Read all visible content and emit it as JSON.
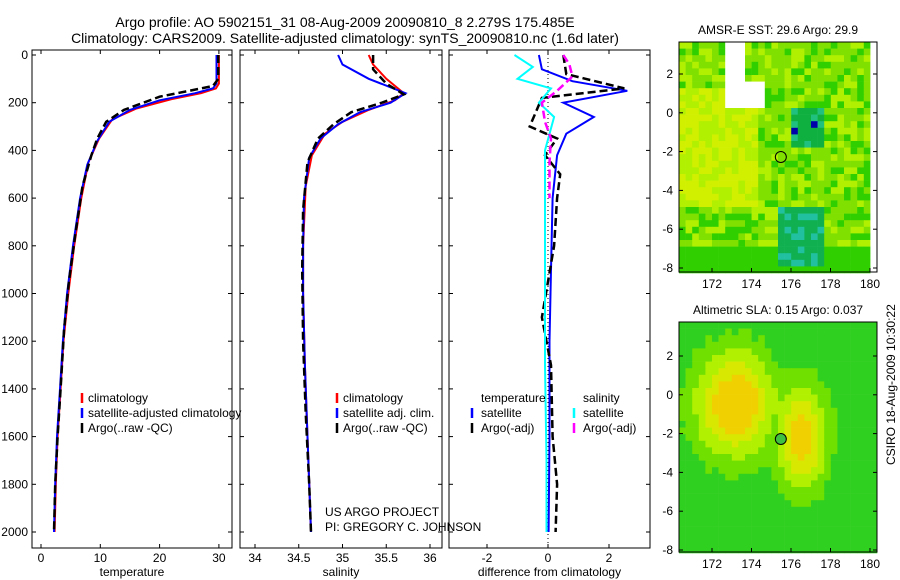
{
  "title_line1": "Argo profile: AO 5902151_31 08-Aug-2009 20090810_8 2.279S 175.485E",
  "title_line2": "Climatology: CARS2009. Satellite-adjusted climatology: synTS_20090810.nc (1.6d later)",
  "side_stamp": "CSIRO 18-Aug-2009 10:30:22",
  "credit": {
    "line1": "US ARGO PROJECT",
    "line2": "PI: GREGORY C. JOHNSON"
  },
  "colors": {
    "climatology": "#ff0000",
    "satellite": "#0000ff",
    "argo": "#000000",
    "sal_satellite": "#00ffff",
    "sal_argo": "#ff00ff"
  },
  "chart_data": [
    {
      "type": "line",
      "id": "temp",
      "xlabel": "temperature",
      "ylabel": "",
      "xlim": [
        -2,
        32
      ],
      "ylim": [
        0,
        2050
      ],
      "y_reversed": true,
      "xticks": [
        0,
        10,
        20,
        30
      ],
      "yticks": [
        0,
        200,
        400,
        600,
        800,
        1000,
        1200,
        1400,
        1600,
        1800,
        2000
      ],
      "legend": [
        "climatology",
        "satellite-adjusted climatology",
        "Argo(..raw -QC)"
      ],
      "series": [
        {
          "name": "climatology",
          "color": "#ff0000",
          "dash": false,
          "points": [
            [
              30,
              0
            ],
            [
              30,
              120
            ],
            [
              29.5,
              140
            ],
            [
              27,
              160
            ],
            [
              22,
              185
            ],
            [
              16,
              225
            ],
            [
              12,
              270
            ],
            [
              9.8,
              350
            ],
            [
              8,
              450
            ],
            [
              6.8,
              600
            ],
            [
              5.6,
              800
            ],
            [
              4.6,
              1000
            ],
            [
              3.8,
              1200
            ],
            [
              3.3,
              1400
            ],
            [
              2.8,
              1600
            ],
            [
              2.5,
              1800
            ],
            [
              2.3,
              2000
            ]
          ]
        },
        {
          "name": "satellite-adjusted climatology",
          "color": "#0000ff",
          "dash": false,
          "points": [
            [
              29.6,
              0
            ],
            [
              29.6,
              120
            ],
            [
              29,
              140
            ],
            [
              26,
              160
            ],
            [
              20,
              190
            ],
            [
              15,
              230
            ],
            [
              11.5,
              280
            ],
            [
              9.5,
              360
            ],
            [
              7.8,
              460
            ],
            [
              6.6,
              600
            ],
            [
              5.4,
              800
            ],
            [
              4.4,
              1000
            ],
            [
              3.7,
              1200
            ],
            [
              3.2,
              1400
            ],
            [
              2.7,
              1600
            ],
            [
              2.4,
              1800
            ],
            [
              2.2,
              2000
            ]
          ]
        },
        {
          "name": "Argo(..raw -QC)",
          "color": "#000000",
          "dash": true,
          "points": [
            [
              29.9,
              0
            ],
            [
              29.9,
              100
            ],
            [
              29,
              130
            ],
            [
              25,
              150
            ],
            [
              20,
              175
            ],
            [
              14,
              230
            ],
            [
              11,
              280
            ],
            [
              9.5,
              350
            ],
            [
              8.5,
              420
            ],
            [
              7,
              550
            ],
            [
              5.8,
              750
            ],
            [
              4.7,
              950
            ],
            [
              3.9,
              1150
            ],
            [
              3.3,
              1400
            ],
            [
              2.8,
              1600
            ],
            [
              2.4,
              1800
            ],
            [
              2.2,
              2000
            ]
          ]
        }
      ]
    },
    {
      "type": "line",
      "id": "sal",
      "xlabel": "salinity",
      "xlim": [
        33.8,
        36.15
      ],
      "ylim": [
        0,
        2050
      ],
      "y_reversed": true,
      "xticks": [
        34,
        34.5,
        35,
        35.5,
        36
      ],
      "legend": [
        "climatology",
        "satellite adj. clim.",
        "Argo(..raw -QC)"
      ],
      "series": [
        {
          "name": "climatology",
          "color": "#ff0000",
          "dash": false,
          "points": [
            [
              35.3,
              0
            ],
            [
              35.35,
              40
            ],
            [
              35.5,
              100
            ],
            [
              35.7,
              160
            ],
            [
              35.6,
              190
            ],
            [
              35.3,
              230
            ],
            [
              35,
              280
            ],
            [
              34.8,
              330
            ],
            [
              34.65,
              420
            ],
            [
              34.58,
              550
            ],
            [
              34.55,
              800
            ],
            [
              34.55,
              1000
            ],
            [
              34.57,
              1300
            ],
            [
              34.6,
              1600
            ],
            [
              34.64,
              2000
            ]
          ]
        },
        {
          "name": "satellite adj. clim.",
          "color": "#0000ff",
          "dash": false,
          "points": [
            [
              34.95,
              0
            ],
            [
              35.0,
              40
            ],
            [
              35.3,
              100
            ],
            [
              35.72,
              160
            ],
            [
              35.55,
              200
            ],
            [
              35.2,
              240
            ],
            [
              34.95,
              290
            ],
            [
              34.75,
              350
            ],
            [
              34.62,
              430
            ],
            [
              34.56,
              600
            ],
            [
              34.55,
              800
            ],
            [
              34.55,
              1000
            ],
            [
              34.57,
              1300
            ],
            [
              34.6,
              1600
            ],
            [
              34.64,
              2000
            ]
          ]
        },
        {
          "name": "Argo(..raw -QC)",
          "color": "#000000",
          "dash": true,
          "points": [
            [
              35.35,
              0
            ],
            [
              35.35,
              60
            ],
            [
              35.5,
              120
            ],
            [
              35.7,
              165
            ],
            [
              35.45,
              200
            ],
            [
              35.1,
              240
            ],
            [
              34.9,
              290
            ],
            [
              34.72,
              350
            ],
            [
              34.6,
              450
            ],
            [
              34.55,
              650
            ],
            [
              34.54,
              900
            ],
            [
              34.55,
              1200
            ],
            [
              34.58,
              1500
            ],
            [
              34.62,
              1800
            ],
            [
              34.64,
              2000
            ]
          ]
        }
      ]
    },
    {
      "type": "line",
      "id": "diff",
      "xlabel": "difference from climatology",
      "xlim": [
        -3.1,
        3.3
      ],
      "ylim": [
        0,
        2050
      ],
      "y_reversed": true,
      "xticks": [
        -2,
        0,
        2
      ],
      "legend_temperature": {
        "title": "temperature",
        "items": [
          "satellite",
          "Argo(-adj)"
        ]
      },
      "legend_salinity": {
        "title": "salinity",
        "items": [
          "satellite",
          "Argo(-adj)"
        ]
      },
      "series": [
        {
          "name": "temperature satellite",
          "color": "#0000ff",
          "dash": false,
          "points": [
            [
              -0.3,
              0
            ],
            [
              -0.2,
              60
            ],
            [
              0.8,
              110
            ],
            [
              2.6,
              150
            ],
            [
              0.5,
              200
            ],
            [
              1.5,
              260
            ],
            [
              0.6,
              330
            ],
            [
              0.3,
              420
            ],
            [
              0.15,
              600
            ],
            [
              0.1,
              900
            ],
            [
              0.05,
              1200
            ],
            [
              0.05,
              1600
            ],
            [
              0.02,
              2000
            ]
          ]
        },
        {
          "name": "temperature Argo(-adj)",
          "color": "#000000",
          "dash": true,
          "points": [
            [
              0.5,
              0
            ],
            [
              0.6,
              80
            ],
            [
              2.5,
              140
            ],
            [
              -0.2,
              180
            ],
            [
              -0.6,
              300
            ],
            [
              0.3,
              350
            ],
            [
              -0.1,
              420
            ],
            [
              0.4,
              500
            ],
            [
              0.3,
              600
            ],
            [
              0.2,
              800
            ],
            [
              -0.2,
              1100
            ],
            [
              0.1,
              1300
            ],
            [
              0.15,
              1600
            ],
            [
              0.3,
              1800
            ],
            [
              0.25,
              2000
            ]
          ]
        },
        {
          "name": "salinity satellite",
          "color": "#00ffff",
          "dash": false,
          "points": [
            [
              -1.1,
              0
            ],
            [
              -0.5,
              50
            ],
            [
              -1,
              100
            ],
            [
              0.1,
              140
            ],
            [
              -0.3,
              200
            ],
            [
              0.2,
              260
            ],
            [
              -0.1,
              400
            ],
            [
              -0.1,
              700
            ],
            [
              -0.1,
              1000
            ],
            [
              -0.1,
              1300
            ],
            [
              -0.05,
              1700
            ],
            [
              -0.05,
              2000
            ]
          ]
        },
        {
          "name": "salinity Argo(-adj)",
          "color": "#ff00ff",
          "dash": true,
          "points": [
            [
              0.5,
              0
            ],
            [
              0.7,
              40
            ],
            [
              0.8,
              90
            ],
            [
              0.3,
              150
            ],
            [
              -0.2,
              200
            ],
            [
              -0.1,
              280
            ],
            [
              0.1,
              350
            ],
            [
              0.05,
              450
            ],
            [
              0.05,
              600
            ]
          ]
        }
      ]
    },
    {
      "type": "heatmap",
      "id": "sst",
      "title": "AMSR-E SST: 29.6 Argo: 29.9",
      "xlim": [
        170.4,
        180.6
      ],
      "ylim": [
        -8.3,
        3.8
      ],
      "xticks": [
        172,
        174,
        176,
        178,
        180
      ],
      "yticks": [
        2,
        0,
        -2,
        -4,
        -6,
        -8
      ],
      "profile_location": [
        175.485,
        -2.279
      ]
    },
    {
      "type": "heatmap",
      "id": "sla",
      "title": "Altimetric SLA: 0.15 Argo: 0.037",
      "xlim": [
        170.4,
        180.6
      ],
      "ylim": [
        -8.3,
        3.8
      ],
      "xticks": [
        172,
        174,
        176,
        178,
        180
      ],
      "yticks": [
        2,
        0,
        -2,
        -4,
        -6,
        -8
      ],
      "profile_location": [
        175.485,
        -2.279
      ]
    }
  ]
}
